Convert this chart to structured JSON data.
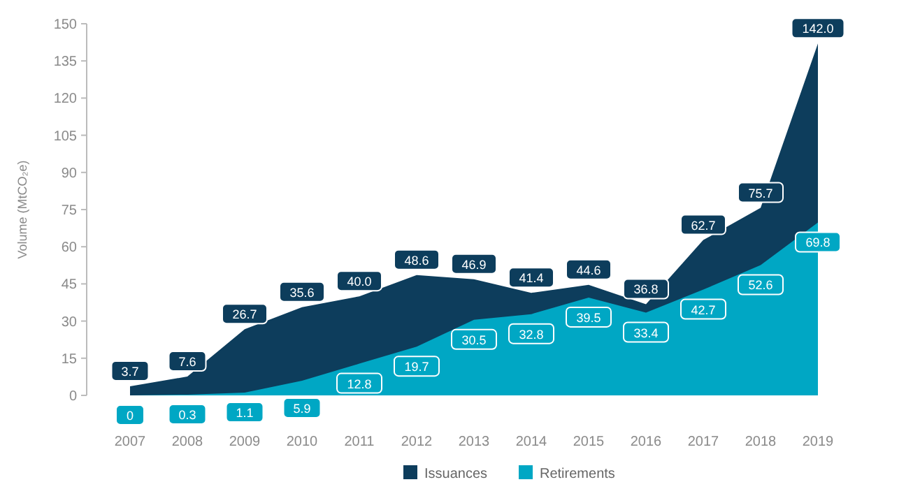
{
  "chart_data": {
    "type": "area",
    "ylabel": "Volume (MtCO₂e)",
    "categories": [
      "2007",
      "2008",
      "2009",
      "2010",
      "2011",
      "2012",
      "2013",
      "2014",
      "2015",
      "2016",
      "2017",
      "2018",
      "2019"
    ],
    "series": [
      {
        "name": "Issuances",
        "color": "#0d3d5c",
        "values": [
          3.7,
          7.6,
          26.7,
          35.6,
          40.0,
          48.6,
          46.9,
          41.4,
          44.6,
          36.8,
          62.7,
          75.7,
          142.0
        ],
        "value_labels": [
          "3.7",
          "7.6",
          "26.7",
          "35.6",
          "40.0",
          "48.6",
          "46.9",
          "41.4",
          "44.6",
          "36.8",
          "62.7",
          "75.7",
          "142.0"
        ]
      },
      {
        "name": "Retirements",
        "color": "#00a7c4",
        "values": [
          0,
          0.3,
          1.1,
          5.9,
          12.8,
          19.7,
          30.5,
          32.8,
          39.5,
          33.4,
          42.7,
          52.6,
          69.8
        ],
        "value_labels": [
          "0",
          "0.3",
          "1.1",
          "5.9",
          "12.8",
          "19.7",
          "30.5",
          "32.8",
          "39.5",
          "33.4",
          "42.7",
          "52.6",
          "69.8"
        ]
      }
    ],
    "ylim": [
      0,
      150
    ],
    "yticks": [
      0,
      15,
      30,
      45,
      60,
      75,
      90,
      105,
      120,
      135,
      150
    ],
    "grid": false,
    "legend": "bottom"
  }
}
